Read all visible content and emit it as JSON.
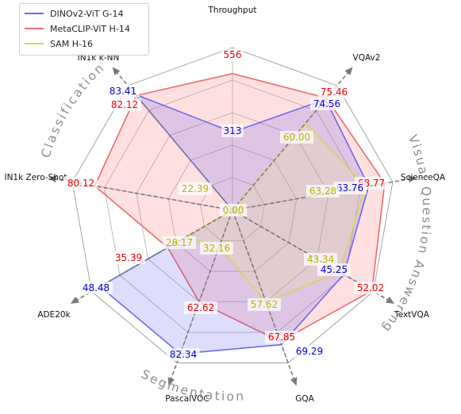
{
  "chart_data": {
    "type": "radar",
    "axes": [
      "Throughput",
      "VQAv2",
      "ScienceQA",
      "TextVQA",
      "GQA",
      "PascalVOC",
      "ADE20k",
      "IN1k Zero-Shot",
      "IN1k k-NN"
    ],
    "series": [
      {
        "name": "DINOv2-ViT G-14",
        "color": "#0000dd",
        "line_color": "#6b6bf0",
        "fill": "rgba(90,90,240,0.20)",
        "values": [
          313,
          74.56,
          63.76,
          45.25,
          69.29,
          82.34,
          48.48,
          0,
          83.41
        ],
        "radius": [
          0.48,
          0.89,
          0.85,
          0.79,
          0.88,
          0.94,
          0.94,
          0.0,
          0.93
        ]
      },
      {
        "name": "MetaCLIP-ViT H-14",
        "color": "#ee0000",
        "line_color": "#ee6a6a",
        "fill": "rgba(255,130,130,0.25)",
        "values": [
          556,
          75.46,
          68.77,
          52.02,
          67.85,
          62.62,
          35.39,
          80.12,
          82.12
        ],
        "radius": [
          0.84,
          0.9,
          0.95,
          0.99,
          0.86,
          0.6,
          0.46,
          0.86,
          0.92
        ]
      },
      {
        "name": "SAM H-16",
        "color": "#b5b500",
        "line_color": "#d6d65a",
        "fill": "rgba(240,240,120,0.18)",
        "values": [
          0.0,
          60.0,
          63.28,
          43.34,
          57.62,
          32.16,
          28.17,
          22.39,
          0.0
        ],
        "radius": [
          0.0,
          0.7,
          0.83,
          0.76,
          0.6,
          0.24,
          0.33,
          0.0,
          0.0
        ]
      }
    ],
    "value_labels": [
      {
        "series": 1,
        "axis": 0,
        "text": "556"
      },
      {
        "series": 0,
        "axis": 0,
        "text": "313"
      },
      {
        "series": 1,
        "axis": 1,
        "text": "75.46"
      },
      {
        "series": 0,
        "axis": 1,
        "text": "74.56"
      },
      {
        "series": 2,
        "axis": 1,
        "text": "60.00"
      },
      {
        "series": 1,
        "axis": 2,
        "text": "68.77"
      },
      {
        "series": 0,
        "axis": 2,
        "text": "63.76"
      },
      {
        "series": 2,
        "axis": 2,
        "text": "63.28"
      },
      {
        "series": 1,
        "axis": 3,
        "text": "52.02"
      },
      {
        "series": 0,
        "axis": 3,
        "text": "45.25"
      },
      {
        "series": 2,
        "axis": 3,
        "text": "43.34"
      },
      {
        "series": 0,
        "axis": 4,
        "text": "69.29"
      },
      {
        "series": 1,
        "axis": 4,
        "text": "67.85"
      },
      {
        "series": 2,
        "axis": 4,
        "text": "57.62"
      },
      {
        "series": 0,
        "axis": 5,
        "text": "82.34"
      },
      {
        "series": 1,
        "axis": 5,
        "text": "62.62"
      },
      {
        "series": 2,
        "axis": 5,
        "text": "32.16"
      },
      {
        "series": 0,
        "axis": 6,
        "text": "48.48"
      },
      {
        "series": 1,
        "axis": 6,
        "text": "35.39"
      },
      {
        "series": 2,
        "axis": 6,
        "text": "28.17"
      },
      {
        "series": 1,
        "axis": 7,
        "text": "80.12"
      },
      {
        "series": 2,
        "axis": 7,
        "text": "22.39"
      },
      {
        "series": 0,
        "axis": 8,
        "text": "83.41"
      },
      {
        "series": 1,
        "axis": 8,
        "text": "82.12"
      },
      {
        "series": 2,
        "axis": 8,
        "text": "0.00"
      }
    ],
    "groups": [
      {
        "label": "Classification"
      },
      {
        "label": "Visual Question Answering"
      },
      {
        "label": "Segmentation"
      }
    ],
    "grid": true,
    "legend_position": "top-left"
  }
}
